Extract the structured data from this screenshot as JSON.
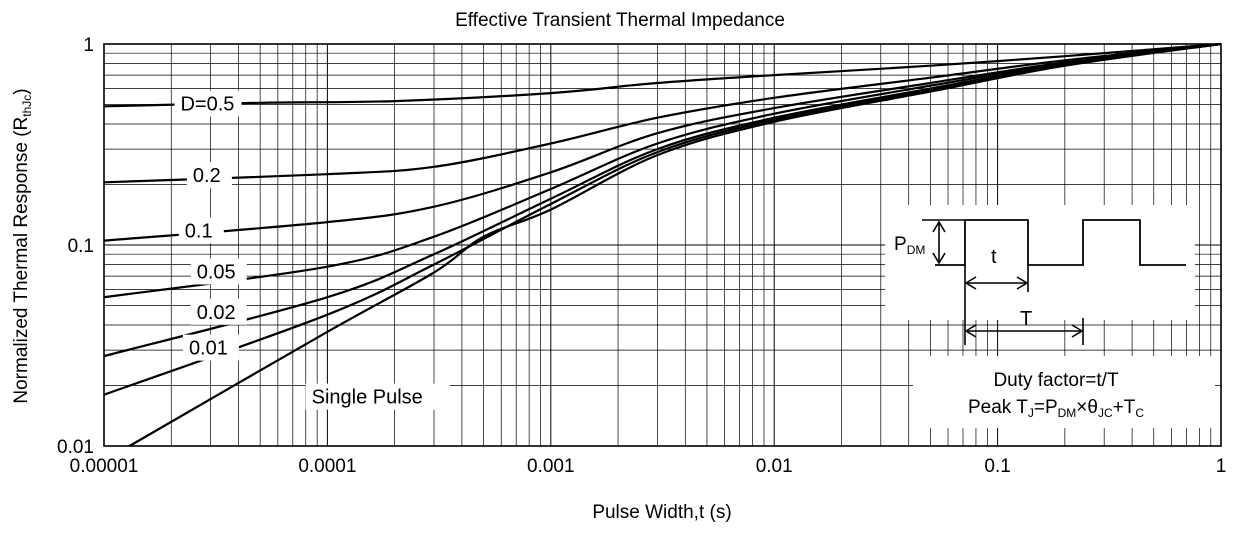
{
  "chart_data": {
    "type": "line",
    "title": "Effective Transient Thermal Impedance",
    "xlabel": "Pulse Width,t (s)",
    "ylabel_main": "Normalized Thermal Response (R",
    "ylabel_sub": "thJc",
    "ylabel_close": ")",
    "xscale": "log",
    "yscale": "log",
    "xlim": [
      1e-05,
      1
    ],
    "ylim": [
      0.01,
      1
    ],
    "grid": true,
    "xticks": [
      {
        "value": 1e-05,
        "label": "0.00001"
      },
      {
        "value": 0.0001,
        "label": "0.0001"
      },
      {
        "value": 0.001,
        "label": "0.001"
      },
      {
        "value": 0.01,
        "label": "0.01"
      },
      {
        "value": 0.1,
        "label": "0.1"
      },
      {
        "value": 1,
        "label": "1"
      }
    ],
    "yticks": [
      {
        "value": 0.01,
        "label": "0.01"
      },
      {
        "value": 0.1,
        "label": "0.1"
      },
      {
        "value": 1,
        "label": "1"
      }
    ],
    "series": [
      {
        "name": "D=0.5",
        "x": [
          1e-05,
          5e-05,
          0.0002,
          0.001,
          0.003,
          0.01,
          0.05,
          0.2,
          1
        ],
        "y": [
          0.49,
          0.51,
          0.52,
          0.57,
          0.64,
          0.7,
          0.78,
          0.87,
          1.0
        ]
      },
      {
        "name": "0.2",
        "x": [
          1e-05,
          0.0001,
          0.0003,
          0.001,
          0.003,
          0.01,
          0.05,
          0.2,
          1
        ],
        "y": [
          0.205,
          0.225,
          0.245,
          0.32,
          0.43,
          0.54,
          0.68,
          0.83,
          1.0
        ]
      },
      {
        "name": "0.1",
        "x": [
          1e-05,
          0.0001,
          0.0003,
          0.001,
          0.003,
          0.01,
          0.05,
          0.2,
          1
        ],
        "y": [
          0.105,
          0.13,
          0.155,
          0.23,
          0.36,
          0.48,
          0.64,
          0.81,
          1.0
        ]
      },
      {
        "name": "0.05",
        "x": [
          1e-05,
          0.0001,
          0.0003,
          0.001,
          0.003,
          0.01,
          0.05,
          0.2,
          1
        ],
        "y": [
          0.055,
          0.078,
          0.11,
          0.19,
          0.32,
          0.45,
          0.62,
          0.8,
          1.0
        ]
      },
      {
        "name": "0.02",
        "x": [
          1e-05,
          0.0001,
          0.0003,
          0.001,
          0.003,
          0.01,
          0.05,
          0.2,
          1
        ],
        "y": [
          0.028,
          0.055,
          0.09,
          0.17,
          0.3,
          0.43,
          0.6,
          0.79,
          1.0
        ]
      },
      {
        "name": "0.01",
        "x": [
          1e-05,
          0.0001,
          0.0003,
          0.001,
          0.003,
          0.01,
          0.05,
          0.2,
          1
        ],
        "y": [
          0.018,
          0.045,
          0.08,
          0.16,
          0.29,
          0.42,
          0.59,
          0.79,
          1.0
        ]
      },
      {
        "name": "Single Pulse",
        "x": [
          1.3e-05,
          0.0001,
          0.0003,
          0.0005,
          0.001,
          0.003,
          0.01,
          0.05,
          0.2,
          1
        ],
        "y": [
          0.01,
          0.037,
          0.073,
          0.11,
          0.15,
          0.28,
          0.41,
          0.58,
          0.78,
          1.0
        ]
      }
    ],
    "curve_labels": [
      {
        "text": "D=0.5",
        "x": 2.2e-05,
        "y": 0.5
      },
      {
        "text": "0.2",
        "x": 2.5e-05,
        "y": 0.22
      },
      {
        "text": "0.1",
        "x": 2.3e-05,
        "y": 0.117
      },
      {
        "text": "0.05",
        "x": 2.6e-05,
        "y": 0.073
      },
      {
        "text": "0.02",
        "x": 2.6e-05,
        "y": 0.046
      },
      {
        "text": "0.01",
        "x": 2.4e-05,
        "y": 0.0305
      },
      {
        "text": "Single Pulse",
        "x": 8.5e-05,
        "y": 0.0174
      }
    ],
    "inset": {
      "pdm_main": "P",
      "pdm_sub": "DM",
      "t_label": "t",
      "T_label": "T",
      "duty_text": "Duty factor=t/T",
      "peak_parts": [
        "Peak T",
        "J",
        "=P",
        "DM",
        "×θ",
        "JC",
        "+T",
        "C"
      ]
    }
  }
}
